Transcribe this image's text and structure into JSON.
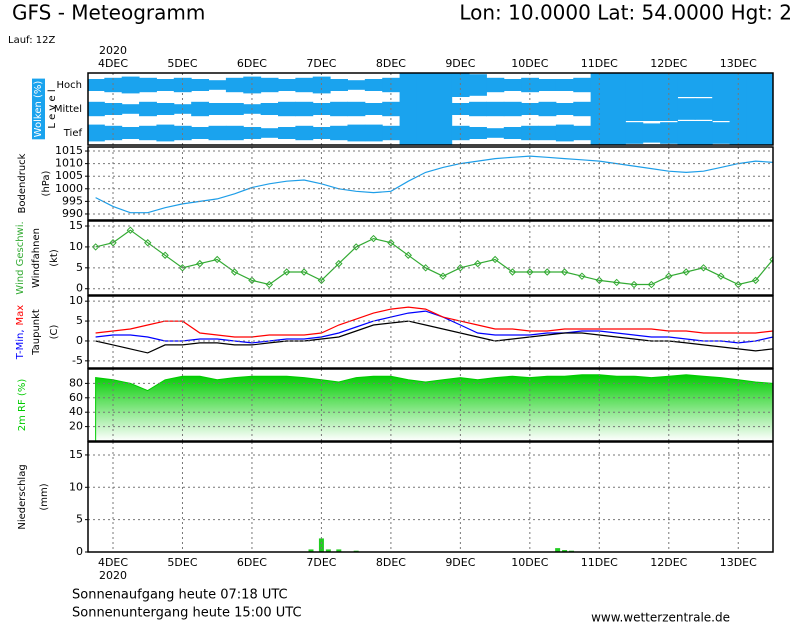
{
  "header": {
    "title": "GFS - Meteogramm",
    "location": "Lon: 10.0000 Lat: 54.0000 Hgt: 2",
    "run": "Lauf: 12Z"
  },
  "footer": {
    "sunrise": "Sonnenaufgang heute 07:18 UTC",
    "sunset": "Sonnenuntergang heute 15:00 UTC",
    "source": "www.wetterzentrale.de"
  },
  "chart_data": [
    {
      "type": "cloud",
      "ylabel": "Wolken (%)",
      "ylabel2": "L e v e l",
      "year": "2020",
      "x": [
        -0.25,
        0,
        0.25,
        0.5,
        0.75,
        1,
        1.25,
        1.5,
        1.75,
        2,
        2.25,
        2.5,
        2.75,
        3,
        3.25,
        3.5,
        3.75,
        4,
        4.25,
        4.5,
        4.75,
        5,
        5.25,
        5.5,
        5.75,
        6,
        6.25,
        6.5,
        6.75,
        7,
        7.25,
        7.5,
        7.75,
        8,
        8.25,
        8.5,
        8.75,
        9,
        9.25,
        9.5
      ],
      "xlim": [
        -0.36,
        9.5
      ],
      "xticks": [
        {
          "value": 0,
          "label": "4DEC"
        },
        {
          "value": 1,
          "label": "5DEC"
        },
        {
          "value": 2,
          "label": "6DEC"
        },
        {
          "value": 3,
          "label": "7DEC"
        },
        {
          "value": 4,
          "label": "8DEC"
        },
        {
          "value": 5,
          "label": "9DEC"
        },
        {
          "value": 6,
          "label": "10DEC"
        },
        {
          "value": 7,
          "label": "11DEC"
        },
        {
          "value": 8,
          "label": "12DEC"
        },
        {
          "value": 9,
          "label": "13DEC"
        }
      ],
      "ylim": [
        0,
        100
      ],
      "series": [
        {
          "name": "Hoch",
          "color": "#1aa3ee",
          "values": [
            50,
            60,
            70,
            60,
            50,
            60,
            50,
            40,
            60,
            70,
            60,
            50,
            60,
            70,
            50,
            40,
            50,
            60,
            100,
            100,
            100,
            100,
            90,
            60,
            50,
            60,
            50,
            50,
            60,
            100,
            100,
            100,
            100,
            100,
            100,
            100,
            100,
            100,
            100,
            100
          ]
        },
        {
          "name": "Mittel",
          "color": "#1aa3ee",
          "values": [
            60,
            50,
            40,
            60,
            50,
            40,
            60,
            50,
            50,
            40,
            50,
            60,
            60,
            50,
            60,
            60,
            50,
            60,
            100,
            100,
            100,
            50,
            60,
            60,
            60,
            50,
            60,
            50,
            60,
            100,
            100,
            100,
            100,
            100,
            90,
            90,
            100,
            100,
            100,
            100
          ]
        },
        {
          "name": "Tief",
          "color": "#1aa3ee",
          "values": [
            70,
            60,
            50,
            60,
            70,
            60,
            50,
            60,
            60,
            50,
            40,
            50,
            60,
            50,
            60,
            70,
            70,
            60,
            100,
            100,
            100,
            60,
            50,
            40,
            50,
            60,
            60,
            70,
            60,
            100,
            100,
            90,
            80,
            90,
            100,
            100,
            90,
            100,
            100,
            100
          ]
        }
      ]
    },
    {
      "type": "line",
      "ylabel": "(hPa)",
      "x": [
        -0.25,
        0,
        0.25,
        0.5,
        0.75,
        1,
        1.25,
        1.5,
        1.75,
        2,
        2.25,
        2.5,
        2.75,
        3,
        3.25,
        3.5,
        3.75,
        4,
        4.25,
        4.5,
        4.75,
        5,
        5.25,
        5.5,
        5.75,
        6,
        6.25,
        6.5,
        6.75,
        7,
        7.25,
        7.5,
        7.75,
        8,
        8.25,
        8.5,
        8.75,
        9,
        9.25,
        9.5
      ],
      "xlim": [
        -0.36,
        9.5
      ],
      "xticks": [
        0,
        1,
        2,
        3,
        4,
        5,
        6,
        7,
        8,
        9
      ],
      "ylim": [
        987.6,
        1016.6
      ],
      "yticks": [
        990,
        995,
        1000,
        1005,
        1010,
        1015
      ],
      "grid": true,
      "series": [
        {
          "name": "Bodendruck",
          "color": "#1e9ee8",
          "values": [
            996.5,
            993,
            990.5,
            990.5,
            992.5,
            994,
            995,
            996,
            998,
            1000.5,
            1002,
            1003,
            1003.5,
            1002,
            1000,
            999,
            998.5,
            999,
            1003,
            1006.5,
            1008.5,
            1010,
            1011,
            1012,
            1012.5,
            1013,
            1012.5,
            1012,
            1011.5,
            1011,
            1010,
            1009,
            1008,
            1007,
            1006.5,
            1007,
            1008.5,
            1010,
            1011,
            1010.5
          ]
        }
      ]
    },
    {
      "type": "line",
      "ylabel": "Windfahnen",
      "ylabel2": "(kt)",
      "markers": "diamond",
      "x": [
        -0.25,
        0,
        0.25,
        0.5,
        0.75,
        1,
        1.25,
        1.5,
        1.75,
        2,
        2.25,
        2.5,
        2.75,
        3,
        3.25,
        3.5,
        3.75,
        4,
        4.25,
        4.5,
        4.75,
        5,
        5.25,
        5.5,
        5.75,
        6,
        6.25,
        6.5,
        6.75,
        7,
        7.25,
        7.5,
        7.75,
        8,
        8.25,
        8.5,
        8.75,
        9,
        9.25,
        9.5
      ],
      "xlim": [
        -0.36,
        9.5
      ],
      "xticks": [
        0,
        1,
        2,
        3,
        4,
        5,
        6,
        7,
        8,
        9
      ],
      "ylim": [
        -1.5,
        16.2
      ],
      "yticks": [
        0,
        5,
        10,
        15
      ],
      "grid": true,
      "series": [
        {
          "name": "Wind Geschwi.",
          "color": "#33aa33",
          "values": [
            10,
            11,
            14,
            11,
            8,
            5,
            6,
            7,
            4,
            2,
            1,
            4,
            4,
            2,
            6,
            10,
            12,
            11,
            8,
            5,
            3,
            5,
            6,
            7,
            4,
            4,
            4,
            4,
            3,
            2,
            1.5,
            1,
            1,
            3,
            4,
            5,
            3,
            1,
            2,
            7
          ]
        }
      ]
    },
    {
      "type": "line",
      "ylabel": "(C)",
      "x": [
        -0.25,
        0,
        0.25,
        0.5,
        0.75,
        1,
        1.25,
        1.5,
        1.75,
        2,
        2.25,
        2.5,
        2.75,
        3,
        3.25,
        3.5,
        3.75,
        4,
        4.25,
        4.5,
        4.75,
        5,
        5.25,
        5.5,
        5.75,
        6,
        6.25,
        6.5,
        6.75,
        7,
        7.25,
        7.5,
        7.75,
        8,
        8.25,
        8.5,
        8.75,
        9,
        9.25,
        9.5
      ],
      "xlim": [
        -0.36,
        9.5
      ],
      "xticks": [
        0,
        1,
        2,
        3,
        4,
        5,
        6,
        7,
        8,
        9
      ],
      "ylim": [
        -6.8,
        11.3
      ],
      "yticks": [
        -5,
        0,
        5,
        10
      ],
      "grid": true,
      "series": [
        {
          "name": "T-Min,",
          "color": "#0000ff",
          "values": [
            1,
            1.5,
            1.5,
            1,
            0,
            0,
            0.5,
            0.5,
            0,
            -0.5,
            0,
            0.5,
            0.5,
            1,
            2,
            3.5,
            5,
            6,
            7,
            7.5,
            6,
            4,
            2,
            1.5,
            1.5,
            1.5,
            2,
            2,
            2.5,
            2.5,
            2,
            1.5,
            1,
            1,
            0.5,
            0,
            0,
            -0.5,
            0,
            1
          ]
        },
        {
          "name": "Max",
          "color": "#ff0000",
          "values": [
            2,
            2.5,
            3,
            4,
            5,
            5,
            2,
            1.5,
            1,
            1,
            1.5,
            1.5,
            1.5,
            2,
            4,
            5.5,
            7,
            8,
            8.5,
            8,
            6,
            5,
            4,
            3,
            3,
            2.5,
            2.5,
            3,
            3,
            3,
            3,
            3,
            3,
            2.5,
            2.5,
            2,
            2,
            2,
            2,
            2.5
          ]
        },
        {
          "name": "Taupunkt",
          "color": "#000000",
          "values": [
            0,
            -1,
            -2,
            -3,
            -1,
            -1,
            -0.5,
            -0.5,
            -1,
            -1,
            -0.5,
            0,
            0,
            0.5,
            1,
            2.5,
            4,
            4.5,
            5,
            4,
            3,
            2,
            1,
            0,
            0.5,
            1,
            1.5,
            2,
            2,
            1.5,
            1,
            0.5,
            0,
            0,
            -0.5,
            -1,
            -1.5,
            -2,
            -2.5,
            -2
          ]
        }
      ]
    },
    {
      "type": "area",
      "x": [
        -0.25,
        0,
        0.25,
        0.5,
        0.75,
        1,
        1.25,
        1.5,
        1.75,
        2,
        2.25,
        2.5,
        2.75,
        3,
        3.25,
        3.5,
        3.75,
        4,
        4.25,
        4.5,
        4.75,
        5,
        5.25,
        5.5,
        5.75,
        6,
        6.25,
        6.5,
        6.75,
        7,
        7.25,
        7.5,
        7.75,
        8,
        8.25,
        8.5,
        8.75,
        9,
        9.25,
        9.5
      ],
      "xlim": [
        -0.36,
        9.5
      ],
      "xticks": [
        0,
        1,
        2,
        3,
        4,
        5,
        6,
        7,
        8,
        9
      ],
      "ylim": [
        0,
        100
      ],
      "yticks": [
        20,
        40,
        60,
        80
      ],
      "grid": true,
      "series": [
        {
          "name": "2m RF (%)",
          "color": "#00cc00",
          "values": [
            88,
            85,
            80,
            70,
            85,
            90,
            90,
            85,
            88,
            90,
            90,
            90,
            88,
            85,
            82,
            88,
            90,
            90,
            85,
            82,
            85,
            88,
            85,
            88,
            90,
            88,
            90,
            90,
            92,
            92,
            90,
            90,
            88,
            90,
            92,
            90,
            88,
            85,
            82,
            80
          ]
        }
      ]
    },
    {
      "type": "bar",
      "ylabel": "Niederschlag",
      "ylabel2": "(mm)",
      "year": "2020",
      "x": [
        2.85,
        3.0,
        3.1,
        3.25,
        3.5,
        6.4,
        6.5,
        6.6
      ],
      "values": [
        0.4,
        2.1,
        0.4,
        0.4,
        0.2,
        0.6,
        0.3,
        0.2
      ],
      "color": "#22cc22",
      "xlim": [
        -0.36,
        9.5
      ],
      "xticks": [
        {
          "value": 0,
          "label": "4DEC"
        },
        {
          "value": 1,
          "label": "5DEC"
        },
        {
          "value": 2,
          "label": "6DEC"
        },
        {
          "value": 3,
          "label": "7DEC"
        },
        {
          "value": 4,
          "label": "8DEC"
        },
        {
          "value": 5,
          "label": "9DEC"
        },
        {
          "value": 6,
          "label": "10DEC"
        },
        {
          "value": 7,
          "label": "11DEC"
        },
        {
          "value": 8,
          "label": "12DEC"
        },
        {
          "value": 9,
          "label": "13DEC"
        }
      ],
      "ylim": [
        0,
        17
      ],
      "yticks": [
        0,
        5,
        10,
        15
      ],
      "grid": true
    }
  ]
}
